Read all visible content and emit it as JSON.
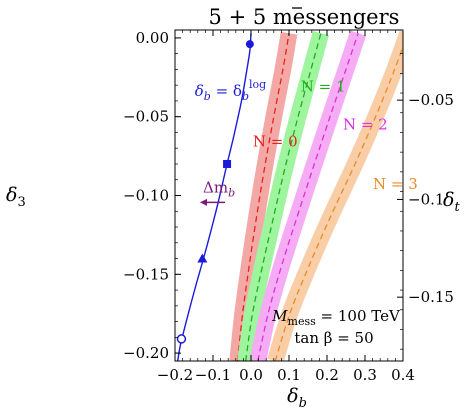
{
  "chart_data": {
    "type": "line",
    "title": "5 + 5̅ messengers",
    "title_main": "5 + 5",
    "title_tail": " messengers",
    "xlabel_main": "δ",
    "xlabel_sub": "b",
    "ylabel_left_main": "δ",
    "ylabel_left_sub": "3",
    "ylabel_right_main": "δ",
    "ylabel_right_sub": "t",
    "xlim": [
      -0.2,
      0.4
    ],
    "ylim": [
      -0.205,
      0.005
    ],
    "x_ticks": [
      "-0.2",
      "-0.1",
      "0.0",
      "0.1",
      "0.2",
      "0.3",
      "0.4"
    ],
    "x_tick_values": [
      -0.2,
      -0.1,
      0.0,
      0.1,
      0.2,
      0.3,
      0.4
    ],
    "y_ticks": [
      "0.00",
      "-0.05",
      "-0.10",
      "-0.15",
      "-0.20"
    ],
    "y_tick_values": [
      0.0,
      -0.05,
      -0.1,
      -0.15,
      -0.2
    ],
    "right_ticks": [
      "-0.05",
      "-0.1",
      "-0.15"
    ],
    "right_tick_positions": [
      -0.0395,
      -0.1025,
      -0.1645
    ],
    "blue_curve": {
      "label_main": "δ",
      "label_sub": "b",
      "label_eq": " = δ",
      "label_sub2": "b",
      "label_sup": "log",
      "color": "#1a1adb",
      "x": [
        -0.193,
        -0.185,
        -0.165,
        -0.145,
        -0.125,
        -0.105,
        -0.085,
        -0.065,
        -0.045,
        -0.025,
        -0.012,
        -0.003,
        0.0
      ],
      "y": [
        -0.205,
        -0.194,
        -0.175,
        -0.157,
        -0.14,
        -0.122,
        -0.103,
        -0.082,
        -0.062,
        -0.04,
        -0.022,
        -0.008,
        0.003
      ],
      "markers": [
        {
          "shape": "circle",
          "x": -0.003,
          "y": -0.004
        },
        {
          "shape": "square",
          "x": -0.063,
          "y": -0.08
        },
        {
          "shape": "triangle",
          "x": -0.128,
          "y": -0.14
        },
        {
          "shape": "open-circle",
          "x": -0.183,
          "y": -0.191
        }
      ]
    },
    "bands": [
      {
        "name": "N = 0",
        "color": "#e8221c",
        "fill": "#f4a8a5",
        "half_width": 0.022,
        "x": [
          -0.035,
          -0.022,
          -0.005,
          0.015,
          0.036,
          0.06,
          0.084,
          0.1
        ],
        "y": [
          -0.205,
          -0.175,
          -0.145,
          -0.113,
          -0.082,
          -0.05,
          -0.02,
          0.003
        ]
      },
      {
        "name": "N = 1",
        "color": "#1fae1f",
        "fill": "#9ef59e",
        "half_width": 0.022,
        "x": [
          -0.014,
          0.004,
          0.03,
          0.06,
          0.09,
          0.124,
          0.158,
          0.184
        ],
        "y": [
          -0.205,
          -0.175,
          -0.145,
          -0.113,
          -0.082,
          -0.05,
          -0.02,
          0.003
        ]
      },
      {
        "name": "N = 2",
        "color": "#e02ee0",
        "fill": "#f5acf5",
        "half_width": 0.022,
        "x": [
          0.018,
          0.045,
          0.08,
          0.122,
          0.164,
          0.208,
          0.25,
          0.282
        ],
        "y": [
          -0.205,
          -0.175,
          -0.145,
          -0.113,
          -0.082,
          -0.05,
          -0.02,
          0.003
        ]
      },
      {
        "name": "N = 3",
        "color": "#ee8a28",
        "fill": "#f9cea6",
        "half_width": 0.022,
        "x": [
          0.064,
          0.102,
          0.152,
          0.21,
          0.27,
          0.328,
          0.378,
          0.412
        ],
        "y": [
          -0.205,
          -0.175,
          -0.145,
          -0.113,
          -0.082,
          -0.05,
          -0.02,
          0.003
        ]
      }
    ],
    "band_labels": [
      {
        "text": "N = 0",
        "color": "#e8221c",
        "x": 0.005,
        "y": -0.069
      },
      {
        "text": "N = 1",
        "color": "#1fae1f",
        "x": 0.131,
        "y": -0.034
      },
      {
        "text": "N = 2",
        "color": "#e02ee0",
        "x": 0.242,
        "y": -0.058
      },
      {
        "text": "N = 3",
        "color": "#ee8a28",
        "x": 0.321,
        "y": -0.096
      }
    ],
    "delta_m_label": {
      "main": "Δm",
      "sub": "b",
      "color": "#7a1a7a",
      "x": -0.1,
      "y": -0.098
    },
    "params": {
      "line1_main": "M",
      "line1_sub": "mess",
      "line1_tail": " = 100 TeV",
      "line2": "tan β = 50"
    }
  }
}
